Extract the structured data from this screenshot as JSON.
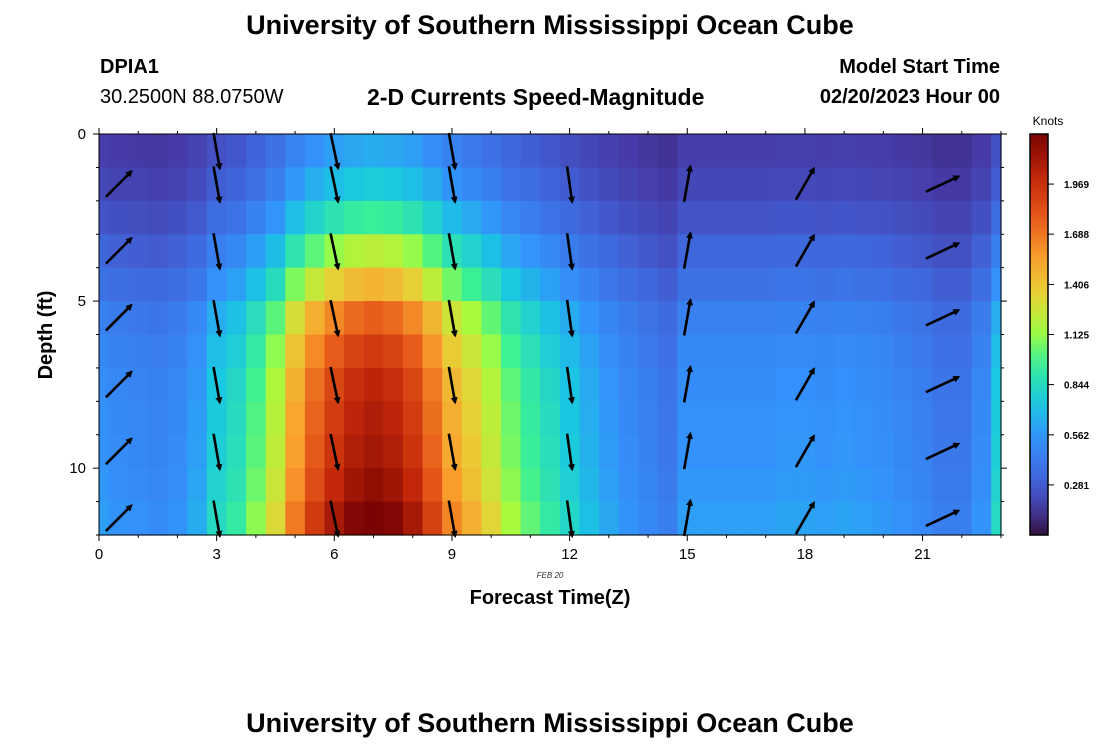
{
  "header": {
    "title": "University of Southern Mississippi Ocean Cube",
    "station_id": "DPIA1",
    "station_coords": "30.2500N  88.0750W",
    "plot_title": "2-D Currents Speed-Magnitude",
    "model_start_label": "Model Start Time",
    "model_start_value": "02/20/2023 Hour 00"
  },
  "footer": {
    "title": "University of Southern Mississippi Ocean Cube"
  },
  "chart_data": {
    "type": "heatmap",
    "title": "2-D Currents Speed-Magnitude",
    "xlabel": "Forecast Time(Z)",
    "ylabel": "Depth (ft)",
    "date_label": "FEB 20",
    "xlim": [
      0,
      23
    ],
    "ylim": [
      0,
      12
    ],
    "y_inverted": true,
    "x_ticks": [
      0,
      3,
      6,
      9,
      12,
      15,
      18,
      21
    ],
    "y_ticks": [
      0,
      5,
      10
    ],
    "colorbar": {
      "label": "Knots",
      "ticks": [
        "1.969",
        "1.688",
        "1.406",
        "1.125",
        "0.844",
        "0.562",
        "0.281"
      ],
      "tick_values": [
        1.969,
        1.688,
        1.406,
        1.125,
        0.844,
        0.562,
        0.281
      ],
      "min": 0,
      "max": 2.25
    },
    "hours": [
      0,
      0.5,
      1,
      1.5,
      2,
      2.5,
      3,
      3.5,
      4,
      4.5,
      5,
      5.5,
      6,
      6.5,
      7,
      7.5,
      8,
      8.5,
      9,
      9.5,
      10,
      10.5,
      11,
      11.5,
      12,
      12.5,
      13,
      13.5,
      14,
      14.5,
      15,
      15.5,
      16,
      16.5,
      17,
      17.5,
      18,
      18.5,
      19,
      19.5,
      20,
      20.5,
      21,
      21.5,
      22,
      22.5,
      23
    ],
    "depths_ft": [
      0.5,
      1.5,
      2.5,
      3.5,
      4.5,
      5.5,
      6.5,
      7.5,
      8.5,
      9.5,
      10.5,
      11.5
    ],
    "speed_profile_knots": [
      0.33,
      0.31,
      0.3,
      0.29,
      0.31,
      0.36,
      0.47,
      0.52,
      0.62,
      0.74,
      0.94,
      1.08,
      1.18,
      1.25,
      1.28,
      1.25,
      1.18,
      1.06,
      0.92,
      0.84,
      0.75,
      0.65,
      0.58,
      0.52,
      0.46,
      0.4,
      0.35,
      0.31,
      0.28,
      0.25,
      0.33,
      0.33,
      0.33,
      0.33,
      0.33,
      0.34,
      0.34,
      0.33,
      0.34,
      0.33,
      0.32,
      0.3,
      0.28,
      0.25,
      0.25,
      0.31,
      0.47
    ],
    "depth_factor": [
      0.5,
      0.6,
      0.75,
      0.95,
      1.15,
      1.38,
      1.5,
      1.58,
      1.62,
      1.65,
      1.7,
      1.78
    ],
    "arrows": {
      "times": [
        0.5,
        3,
        6,
        9,
        12,
        15,
        18,
        21.5
      ],
      "depths_ft": [
        1.5,
        3.5,
        5.5,
        7.5,
        9.5,
        11.5
      ],
      "top_row": {
        "times": [
          3,
          6,
          9
        ],
        "depth_ft": 0.5
      },
      "direction_deg": [
        45,
        170,
        168,
        170,
        172,
        10,
        30,
        65
      ]
    }
  }
}
